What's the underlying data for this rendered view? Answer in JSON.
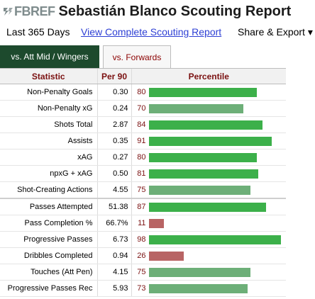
{
  "header": {
    "logo_text": "FBREF",
    "title": "Sebastián Blanco Scouting Report"
  },
  "subbar": {
    "range_label": "Last 365 Days",
    "complete_link": "View Complete Scouting Report",
    "share_label": "Share & Export ▾"
  },
  "tabs": [
    {
      "label": "vs. Att Mid / Wingers",
      "active": true
    },
    {
      "label": "vs. Forwards",
      "active": false
    }
  ],
  "table": {
    "headers": [
      "Statistic",
      "Per 90",
      "Percentile"
    ],
    "rows": [
      {
        "stat": "Non-Penalty Goals",
        "per90": "0.30",
        "percentile": 80
      },
      {
        "stat": "Non-Penalty xG",
        "per90": "0.24",
        "percentile": 70
      },
      {
        "stat": "Shots Total",
        "per90": "2.87",
        "percentile": 84
      },
      {
        "stat": "Assists",
        "per90": "0.35",
        "percentile": 91
      },
      {
        "stat": "xAG",
        "per90": "0.27",
        "percentile": 80
      },
      {
        "stat": "npxG + xAG",
        "per90": "0.50",
        "percentile": 81
      },
      {
        "stat": "Shot-Creating Actions",
        "per90": "4.55",
        "percentile": 75
      },
      {
        "stat": "Passes Attempted",
        "per90": "51.38",
        "percentile": 87
      },
      {
        "stat": "Pass Completion %",
        "per90": "66.7%",
        "percentile": 11
      },
      {
        "stat": "Progressive Passes",
        "per90": "6.73",
        "percentile": 98
      },
      {
        "stat": "Dribbles Completed",
        "per90": "0.94",
        "percentile": 26
      },
      {
        "stat": "Touches (Att Pen)",
        "per90": "4.15",
        "percentile": 75
      },
      {
        "stat": "Progressive Passes Rec",
        "per90": "5.93",
        "percentile": 73
      }
    ]
  },
  "colors": {
    "bar_high": "#3cb04a",
    "bar_mid": "#6daf78",
    "bar_low": "#b86464",
    "tab_active_bg": "#1d4a2d",
    "percentile_text": "#7a1010",
    "link": "#2d3fd4"
  }
}
